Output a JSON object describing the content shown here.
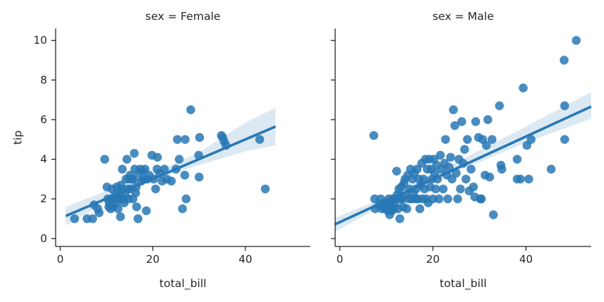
{
  "chart_data": {
    "type": "scatter",
    "facet_variable": "sex",
    "facets": [
      {
        "title": "sex = Female",
        "xlabel": "total_bill",
        "ylabel": "tip",
        "xlim": [
          -1,
          54
        ],
        "ylim": [
          -0.4,
          10.6
        ],
        "xticks": [
          0,
          20,
          40
        ],
        "yticks": [
          0,
          2,
          4,
          6,
          8,
          10
        ],
        "color": "#2878b5",
        "regression": {
          "x": [
            1.2,
            46.5
          ],
          "y": [
            1.14,
            5.65
          ]
        },
        "ci_band": {
          "x": [
            1.2,
            10,
            20,
            30,
            40,
            46.5
          ],
          "lower": [
            0.65,
            1.85,
            2.95,
            3.7,
            4.4,
            4.7
          ],
          "upper": [
            1.6,
            2.4,
            3.3,
            4.35,
            5.85,
            6.6
          ]
        },
        "points": [
          [
            3.1,
            1.0
          ],
          [
            5.8,
            1.0
          ],
          [
            7.0,
            1.0
          ],
          [
            7.3,
            1.7
          ],
          [
            8.1,
            1.5
          ],
          [
            8.4,
            1.3
          ],
          [
            9.6,
            4.0
          ],
          [
            10.1,
            2.6
          ],
          [
            10.3,
            2.0
          ],
          [
            10.5,
            1.6
          ],
          [
            10.6,
            1.8
          ],
          [
            10.9,
            1.5
          ],
          [
            11.1,
            2.0
          ],
          [
            11.2,
            2.5
          ],
          [
            11.4,
            1.6
          ],
          [
            11.6,
            2.0
          ],
          [
            11.9,
            2.2
          ],
          [
            12.0,
            1.8
          ],
          [
            12.2,
            2.6
          ],
          [
            12.5,
            1.5
          ],
          [
            12.7,
            2.0
          ],
          [
            12.9,
            2.3
          ],
          [
            13.0,
            1.1
          ],
          [
            13.1,
            2.7
          ],
          [
            13.3,
            2.5
          ],
          [
            13.4,
            3.5
          ],
          [
            13.6,
            2.0
          ],
          [
            13.8,
            1.8
          ],
          [
            14.0,
            2.2
          ],
          [
            14.2,
            3.0
          ],
          [
            14.4,
            4.0
          ],
          [
            14.6,
            2.5
          ],
          [
            14.7,
            2.0
          ],
          [
            14.9,
            3.0
          ],
          [
            15.1,
            3.2
          ],
          [
            15.2,
            2.5
          ],
          [
            15.5,
            3.0
          ],
          [
            15.7,
            2.0
          ],
          [
            15.8,
            3.0
          ],
          [
            16.0,
            4.3
          ],
          [
            16.1,
            3.5
          ],
          [
            16.3,
            2.3
          ],
          [
            16.4,
            2.6
          ],
          [
            16.5,
            1.6
          ],
          [
            16.8,
            1.0
          ],
          [
            17.0,
            3.3
          ],
          [
            17.3,
            3.5
          ],
          [
            17.5,
            2.9
          ],
          [
            17.8,
            3.4
          ],
          [
            18.0,
            3.0
          ],
          [
            18.3,
            3.5
          ],
          [
            18.6,
            1.4
          ],
          [
            18.8,
            3.0
          ],
          [
            19.2,
            3.2
          ],
          [
            19.8,
            4.2
          ],
          [
            20.2,
            3.0
          ],
          [
            20.6,
            2.5
          ],
          [
            20.9,
            3.5
          ],
          [
            21.0,
            4.1
          ],
          [
            21.5,
            3.3
          ],
          [
            22.0,
            2.9
          ],
          [
            22.5,
            3.5
          ],
          [
            23.0,
            3.0
          ],
          [
            24.0,
            2.9
          ],
          [
            25.0,
            3.5
          ],
          [
            25.3,
            5.0
          ],
          [
            25.7,
            4.0
          ],
          [
            26.4,
            1.5
          ],
          [
            26.9,
            3.2
          ],
          [
            27.0,
            5.0
          ],
          [
            27.2,
            2.0
          ],
          [
            28.2,
            6.5
          ],
          [
            29.9,
            4.2
          ],
          [
            30.0,
            3.1
          ],
          [
            30.1,
            5.1
          ],
          [
            34.8,
            5.2
          ],
          [
            35.1,
            5.1
          ],
          [
            35.4,
            4.9
          ],
          [
            35.8,
            4.7
          ],
          [
            43.1,
            5.0
          ],
          [
            44.3,
            2.5
          ]
        ]
      },
      {
        "title": "sex = Male",
        "xlabel": "total_bill",
        "ylabel": "",
        "xlim": [
          -1,
          54
        ],
        "ylim": [
          -0.4,
          10.6
        ],
        "xticks": [
          0,
          20,
          40
        ],
        "yticks": [
          0,
          2,
          4,
          6,
          8,
          10
        ],
        "color": "#2878b5",
        "regression": {
          "x": [
            -1,
            54
          ],
          "y": [
            0.72,
            6.66
          ]
        },
        "ci_band": {
          "x": [
            -1,
            10,
            20,
            30,
            40,
            54
          ],
          "lower": [
            0.35,
            1.75,
            2.95,
            3.85,
            4.85,
            6.05
          ],
          "upper": [
            1.05,
            2.1,
            3.25,
            4.45,
            5.65,
            7.4
          ]
        },
        "points": [
          [
            7.3,
            5.2
          ],
          [
            7.5,
            2.0
          ],
          [
            7.6,
            1.5
          ],
          [
            8.5,
            1.7
          ],
          [
            8.8,
            2.0
          ],
          [
            9.0,
            1.5
          ],
          [
            9.5,
            1.8
          ],
          [
            9.7,
            1.5
          ],
          [
            9.9,
            1.6
          ],
          [
            10.1,
            1.8
          ],
          [
            10.3,
            1.4
          ],
          [
            10.5,
            2.0
          ],
          [
            10.7,
            1.2
          ],
          [
            10.9,
            1.6
          ],
          [
            11.0,
            1.8
          ],
          [
            11.2,
            1.4
          ],
          [
            11.4,
            2.0
          ],
          [
            11.6,
            1.5
          ],
          [
            11.8,
            1.7
          ],
          [
            12.0,
            2.0
          ],
          [
            12.2,
            3.4
          ],
          [
            12.3,
            2.2
          ],
          [
            12.5,
            1.5
          ],
          [
            12.7,
            2.5
          ],
          [
            12.9,
            1.0
          ],
          [
            13.0,
            2.0
          ],
          [
            13.2,
            2.6
          ],
          [
            13.4,
            2.0
          ],
          [
            13.6,
            1.6
          ],
          [
            13.8,
            2.8
          ],
          [
            14.0,
            3.0
          ],
          [
            14.2,
            2.2
          ],
          [
            14.4,
            1.5
          ],
          [
            14.6,
            3.2
          ],
          [
            14.8,
            2.0
          ],
          [
            15.0,
            2.5
          ],
          [
            15.2,
            3.5
          ],
          [
            15.4,
            2.0
          ],
          [
            15.6,
            3.0
          ],
          [
            15.8,
            2.3
          ],
          [
            16.0,
            3.3
          ],
          [
            16.2,
            2.0
          ],
          [
            16.4,
            2.5
          ],
          [
            16.6,
            3.5
          ],
          [
            16.8,
            2.0
          ],
          [
            17.0,
            3.0
          ],
          [
            17.2,
            1.5
          ],
          [
            17.4,
            2.7
          ],
          [
            17.6,
            3.8
          ],
          [
            17.8,
            2.0
          ],
          [
            18.0,
            3.0
          ],
          [
            18.2,
            2.5
          ],
          [
            18.4,
            4.0
          ],
          [
            18.6,
            2.0
          ],
          [
            18.8,
            3.5
          ],
          [
            19.0,
            1.8
          ],
          [
            19.2,
            4.0
          ],
          [
            19.4,
            2.6
          ],
          [
            19.6,
            3.5
          ],
          [
            19.8,
            3.0
          ],
          [
            20.0,
            2.0
          ],
          [
            20.2,
            4.0
          ],
          [
            20.4,
            3.3
          ],
          [
            20.6,
            2.5
          ],
          [
            20.8,
            3.7
          ],
          [
            21.0,
            3.0
          ],
          [
            21.3,
            2.0
          ],
          [
            21.6,
            4.2
          ],
          [
            21.9,
            3.5
          ],
          [
            22.2,
            2.5
          ],
          [
            22.5,
            3.8
          ],
          [
            22.7,
            5.0
          ],
          [
            23.0,
            3.2
          ],
          [
            23.2,
            2.0
          ],
          [
            23.5,
            3.6
          ],
          [
            23.8,
            4.1
          ],
          [
            24.1,
            3.0
          ],
          [
            24.4,
            6.5
          ],
          [
            24.7,
            5.7
          ],
          [
            25.0,
            3.3
          ],
          [
            25.3,
            2.0
          ],
          [
            25.6,
            4.0
          ],
          [
            25.9,
            2.5
          ],
          [
            26.2,
            5.9
          ],
          [
            26.5,
            3.8
          ],
          [
            26.8,
            4.5
          ],
          [
            27.1,
            3.0
          ],
          [
            27.4,
            5.0
          ],
          [
            27.8,
            2.4
          ],
          [
            28.2,
            3.5
          ],
          [
            28.7,
            2.6
          ],
          [
            29.0,
            2.1
          ],
          [
            29.2,
            5.9
          ],
          [
            29.8,
            5.1
          ],
          [
            30.2,
            2.0
          ],
          [
            30.4,
            2.0
          ],
          [
            30.7,
            5.0
          ],
          [
            31.2,
            3.2
          ],
          [
            31.5,
            4.7
          ],
          [
            31.8,
            6.0
          ],
          [
            32.2,
            3.1
          ],
          [
            32.7,
            5.0
          ],
          [
            33.0,
            1.2
          ],
          [
            34.3,
            6.7
          ],
          [
            34.6,
            3.7
          ],
          [
            34.8,
            3.5
          ],
          [
            38.1,
            3.0
          ],
          [
            38.1,
            4.0
          ],
          [
            38.8,
            3.0
          ],
          [
            39.4,
            7.6
          ],
          [
            40.2,
            4.7
          ],
          [
            40.6,
            3.0
          ],
          [
            41.1,
            5.0
          ],
          [
            45.4,
            3.5
          ],
          [
            48.2,
            9.0
          ],
          [
            48.3,
            6.7
          ],
          [
            48.3,
            5.0
          ],
          [
            50.8,
            10.0
          ]
        ]
      }
    ]
  }
}
